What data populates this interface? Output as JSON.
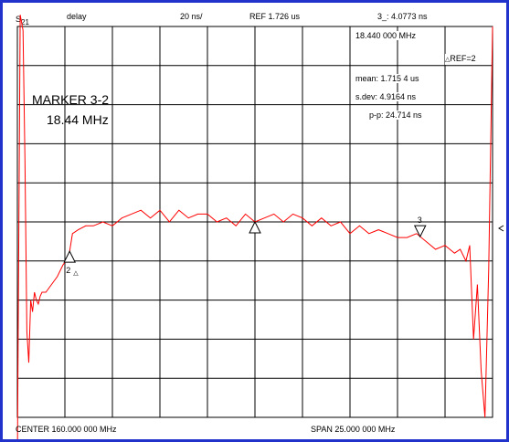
{
  "header": {
    "param_prefix": "S",
    "param_sub": "21",
    "format": "delay",
    "scale": "20 ns/",
    "reference": "REF 1.726 us",
    "marker_readout": "3_: 4.0773 ns"
  },
  "marker_info": {
    "frequency": "18.440 000 MHz",
    "delta_ref": "REF=2",
    "mean": "mean: 1.715 4 us",
    "sdev": "s.dev: 4.9164 ns",
    "pp": "p-p: 24.714 ns"
  },
  "active_marker": {
    "title": "MARKER 3-2",
    "value": "18.44 MHz"
  },
  "footer": {
    "center": "CENTER  160.000 000 MHz",
    "span": "SPAN   25.000 000 MHz"
  },
  "markers": [
    {
      "label": "2",
      "delta": true,
      "x": 2.75
    },
    {
      "label": "",
      "delta": false,
      "x": 12.5
    },
    {
      "label": "3",
      "delta": false,
      "x": 21.19
    }
  ],
  "colors": {
    "trace": "#ff0000",
    "grid": "#000000",
    "border": "#2233cc",
    "marker": "#000000"
  },
  "chart_data": {
    "type": "line",
    "title": "",
    "xlabel": "",
    "ylabel": "",
    "xlim": [
      0,
      25
    ],
    "ylim": [
      0,
      10
    ],
    "grid": true,
    "series": [
      {
        "x": [
          0.0,
          0.15,
          0.3,
          0.4,
          0.5,
          0.6,
          0.7,
          0.8,
          0.9,
          1.0,
          1.1,
          1.2,
          1.3,
          1.5,
          1.8,
          2.1,
          2.4,
          2.7,
          2.9,
          3.2,
          3.6,
          4.0,
          4.5,
          5.0,
          5.5,
          6.0,
          6.5,
          7.0,
          7.5,
          8.0,
          8.5,
          9.0,
          9.5,
          10.0,
          10.5,
          11.0,
          11.5,
          12.0,
          12.5,
          13.0,
          13.5,
          14.0,
          14.5,
          15.0,
          15.5,
          16.0,
          16.5,
          17.0,
          17.5,
          18.0,
          18.5,
          19.0,
          19.5,
          20.0,
          20.5,
          21.0,
          21.5,
          22.0,
          22.5,
          23.0,
          23.3,
          23.6,
          23.8,
          24.0,
          24.2,
          24.4,
          24.6,
          24.8,
          25.0
        ],
        "y": [
          -1.2,
          10.3,
          9.9,
          6.6,
          2.2,
          1.4,
          3.0,
          2.7,
          3.2,
          3.0,
          2.9,
          3.1,
          3.2,
          3.2,
          3.4,
          3.6,
          3.9,
          4.1,
          4.7,
          4.8,
          4.9,
          4.9,
          5.0,
          4.9,
          5.1,
          5.2,
          5.3,
          5.1,
          5.3,
          5.0,
          5.3,
          5.1,
          5.2,
          5.2,
          5.0,
          5.1,
          4.9,
          5.2,
          5.0,
          5.1,
          5.2,
          5.0,
          5.2,
          5.1,
          4.9,
          5.1,
          4.9,
          5.0,
          4.7,
          4.9,
          4.7,
          4.8,
          4.7,
          4.6,
          4.6,
          4.7,
          4.5,
          4.3,
          4.4,
          4.2,
          4.3,
          4.0,
          4.4,
          2.0,
          3.4,
          1.2,
          0.0,
          3.8,
          10.0
        ]
      }
    ]
  }
}
